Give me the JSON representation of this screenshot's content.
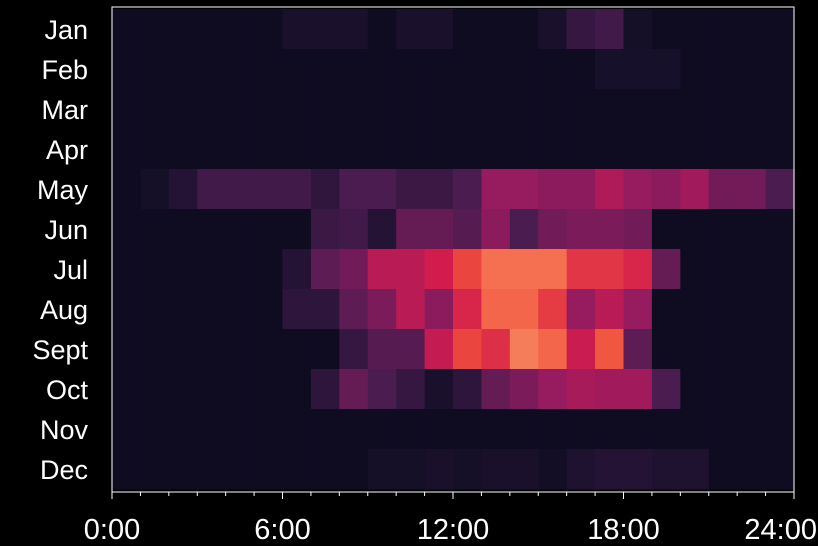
{
  "chart_data": {
    "type": "heatmap",
    "title": "",
    "xlabel": "",
    "ylabel": "",
    "rows": [
      "Jan",
      "Feb",
      "Mar",
      "Apr",
      "May",
      "Jun",
      "Jul",
      "Aug",
      "Sept",
      "Oct",
      "Nov",
      "Dec"
    ],
    "x_tick_labels": [
      "0:00",
      "6:00",
      "12:00",
      "18:00",
      "24:00"
    ],
    "x_tick_values": [
      0,
      6,
      12,
      18,
      24
    ],
    "xlim": [
      0,
      24
    ],
    "bins_per_row": 24,
    "bin_hours": 1,
    "value_range": [
      0,
      1
    ],
    "colormap": "rocket",
    "values": [
      [
        0.03,
        0.03,
        0.03,
        0.03,
        0.03,
        0.03,
        0.08,
        0.08,
        0.08,
        0.03,
        0.08,
        0.08,
        0.03,
        0.03,
        0.03,
        0.08,
        0.18,
        0.22,
        0.06,
        0.03,
        0.03,
        0.03,
        0.03,
        0.03
      ],
      [
        0.03,
        0.03,
        0.03,
        0.03,
        0.03,
        0.03,
        0.03,
        0.03,
        0.03,
        0.03,
        0.03,
        0.03,
        0.03,
        0.03,
        0.03,
        0.03,
        0.03,
        0.07,
        0.07,
        0.07,
        0.03,
        0.03,
        0.03,
        0.03
      ],
      [
        0.03,
        0.03,
        0.03,
        0.03,
        0.03,
        0.03,
        0.03,
        0.03,
        0.03,
        0.03,
        0.03,
        0.03,
        0.03,
        0.03,
        0.03,
        0.03,
        0.03,
        0.03,
        0.03,
        0.03,
        0.03,
        0.03,
        0.03,
        0.03
      ],
      [
        0.03,
        0.03,
        0.03,
        0.03,
        0.03,
        0.03,
        0.03,
        0.03,
        0.03,
        0.03,
        0.03,
        0.03,
        0.03,
        0.03,
        0.03,
        0.03,
        0.03,
        0.03,
        0.03,
        0.03,
        0.03,
        0.03,
        0.03,
        0.03
      ],
      [
        0.03,
        0.06,
        0.12,
        0.22,
        0.22,
        0.22,
        0.22,
        0.16,
        0.25,
        0.25,
        0.2,
        0.2,
        0.25,
        0.45,
        0.45,
        0.42,
        0.42,
        0.52,
        0.45,
        0.42,
        0.48,
        0.35,
        0.35,
        0.25
      ],
      [
        0.03,
        0.03,
        0.03,
        0.03,
        0.03,
        0.03,
        0.03,
        0.2,
        0.22,
        0.12,
        0.32,
        0.32,
        0.28,
        0.42,
        0.25,
        0.35,
        0.38,
        0.38,
        0.35,
        0.03,
        0.03,
        0.03,
        0.03,
        0.03
      ],
      [
        0.03,
        0.03,
        0.03,
        0.03,
        0.03,
        0.03,
        0.12,
        0.3,
        0.35,
        0.55,
        0.55,
        0.62,
        0.75,
        0.88,
        0.88,
        0.88,
        0.7,
        0.7,
        0.65,
        0.32,
        0.03,
        0.03,
        0.03,
        0.03
      ],
      [
        0.03,
        0.03,
        0.03,
        0.03,
        0.03,
        0.03,
        0.15,
        0.15,
        0.3,
        0.38,
        0.55,
        0.42,
        0.65,
        0.85,
        0.85,
        0.72,
        0.45,
        0.55,
        0.45,
        0.03,
        0.03,
        0.03,
        0.03,
        0.03
      ],
      [
        0.03,
        0.03,
        0.03,
        0.03,
        0.03,
        0.03,
        0.03,
        0.03,
        0.18,
        0.28,
        0.28,
        0.58,
        0.75,
        0.68,
        0.92,
        0.85,
        0.6,
        0.8,
        0.3,
        0.03,
        0.03,
        0.03,
        0.03,
        0.03
      ],
      [
        0.03,
        0.03,
        0.03,
        0.03,
        0.03,
        0.03,
        0.03,
        0.15,
        0.32,
        0.25,
        0.18,
        0.08,
        0.15,
        0.32,
        0.38,
        0.45,
        0.5,
        0.48,
        0.48,
        0.25,
        0.03,
        0.03,
        0.03,
        0.03
      ],
      [
        0.03,
        0.03,
        0.03,
        0.03,
        0.03,
        0.03,
        0.03,
        0.03,
        0.03,
        0.03,
        0.03,
        0.03,
        0.03,
        0.03,
        0.03,
        0.03,
        0.03,
        0.03,
        0.03,
        0.03,
        0.03,
        0.03,
        0.03,
        0.03
      ],
      [
        0.03,
        0.03,
        0.03,
        0.03,
        0.03,
        0.03,
        0.03,
        0.03,
        0.03,
        0.06,
        0.06,
        0.08,
        0.06,
        0.08,
        0.08,
        0.05,
        0.1,
        0.12,
        0.12,
        0.1,
        0.1,
        0.03,
        0.03,
        0.03
      ]
    ],
    "grid": false,
    "legend": "none",
    "colors": {
      "background": "#000000",
      "frame": "#ffffff",
      "text": "#ffffff"
    }
  }
}
